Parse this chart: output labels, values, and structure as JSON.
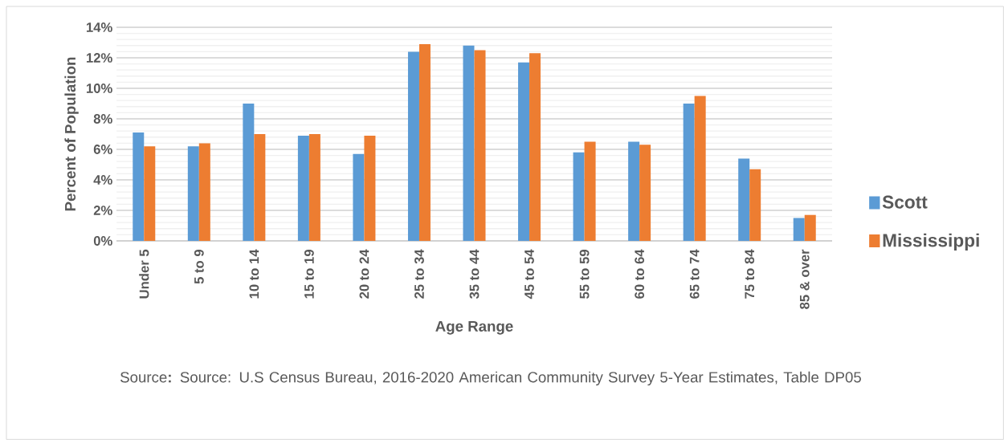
{
  "chart_data": {
    "type": "bar",
    "xlabel": "Age Range",
    "ylabel": "Percent of Population",
    "categories": [
      "Under 5",
      "5 to 9",
      "10 to 14",
      "15 to 19",
      "20 to 24",
      "25 to 34",
      "35 to 44",
      "45 to 54",
      "55 to 59",
      "60 to 64",
      "65 to 74",
      "75 to 84",
      "85 & over"
    ],
    "series": [
      {
        "name": "Scott",
        "color": "#5b9bd5",
        "values": [
          7.1,
          6.2,
          9.0,
          6.9,
          5.7,
          12.4,
          12.8,
          11.7,
          5.8,
          6.5,
          9.0,
          5.4,
          1.5
        ]
      },
      {
        "name": "Mississippi",
        "color": "#ed7d31",
        "values": [
          6.2,
          6.4,
          7.0,
          7.0,
          6.9,
          12.9,
          12.5,
          12.3,
          6.5,
          6.3,
          9.5,
          4.7,
          1.7
        ]
      }
    ],
    "ylim": [
      0,
      14
    ],
    "yticks": [
      {
        "value": 0,
        "label": "0%"
      },
      {
        "value": 2,
        "label": "2%"
      },
      {
        "value": 4,
        "label": "4%"
      },
      {
        "value": 6,
        "label": "6%"
      },
      {
        "value": 8,
        "label": "8%"
      },
      {
        "value": 10,
        "label": "10%"
      },
      {
        "value": 12,
        "label": "12%"
      },
      {
        "value": 14,
        "label": "14%"
      }
    ],
    "grid": "y",
    "legend": "right",
    "annotations": [
      "Source**:** Source: U.S Census Bureau, 2016-2020 American Community Survey 5-Year Estimates, Table DP05"
    ]
  }
}
